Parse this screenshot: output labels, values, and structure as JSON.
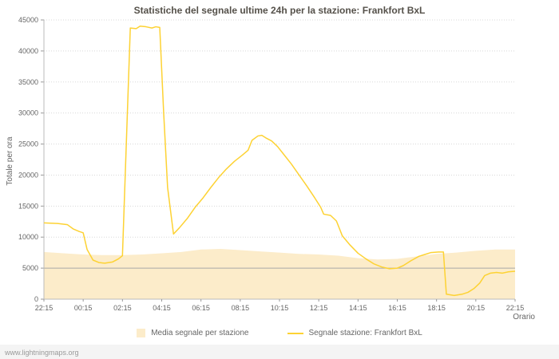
{
  "watermark": "www.lightningmaps.org",
  "chart_data": {
    "type": "line",
    "title": "Statistiche del segnale ultime 24h per la stazione: Frankfort BxL",
    "xlabel": "Orario",
    "ylabel": "Totale per ora",
    "ylim": [
      0,
      45000
    ],
    "ytick_step": 5000,
    "grid": "horizontal-dotted",
    "baseline_value": 5000,
    "legend_position": "bottom",
    "x_ticks": [
      "22:15",
      "00:15",
      "02:15",
      "04:15",
      "06:15",
      "08:15",
      "10:15",
      "12:15",
      "14:15",
      "16:15",
      "18:15",
      "20:15",
      "22:15"
    ],
    "x_unit_hours_total": 24,
    "colors": {
      "line": "#fdd233",
      "area": "#fcecca",
      "baseline": "#a8a8a8",
      "grid": "#d8d8d8"
    },
    "series": [
      {
        "name": "Media segnale per stazione",
        "type": "area",
        "color": "#fcecca",
        "x": [
          0,
          1,
          2,
          3,
          4,
          5,
          6,
          7,
          8,
          9,
          10,
          11,
          12,
          13,
          14,
          15,
          16,
          17,
          18,
          19,
          20,
          21,
          22,
          23,
          24
        ],
        "values": [
          7600,
          7400,
          7200,
          7100,
          7100,
          7200,
          7400,
          7600,
          8000,
          8100,
          7900,
          7700,
          7500,
          7300,
          7200,
          7000,
          6600,
          6400,
          6500,
          6900,
          7300,
          7500,
          7800,
          8000,
          8000
        ]
      },
      {
        "name": "Segnale stazione: Frankfort BxL",
        "type": "line",
        "color": "#fdd233",
        "x": [
          0,
          0.7,
          1.2,
          1.5,
          1.8,
          2.0,
          2.2,
          2.5,
          2.8,
          3.1,
          3.5,
          3.8,
          4.0,
          4.4,
          4.7,
          4.9,
          5.2,
          5.5,
          5.7,
          5.9,
          6.1,
          6.3,
          6.6,
          6.9,
          7.3,
          7.7,
          8.1,
          8.5,
          8.9,
          9.3,
          9.7,
          10.1,
          10.4,
          10.6,
          10.9,
          11.1,
          11.3,
          11.6,
          11.9,
          12.2,
          12.6,
          13.0,
          13.4,
          13.8,
          14.1,
          14.25,
          14.6,
          14.9,
          15.2,
          15.6,
          16.0,
          16.4,
          16.8,
          17.2,
          17.6,
          18.0,
          18.3,
          18.7,
          19.1,
          19.4,
          19.7,
          20.1,
          20.35,
          20.5,
          20.9,
          21.3,
          21.6,
          21.9,
          22.2,
          22.45,
          22.75,
          23.05,
          23.35,
          23.65,
          24.0
        ],
        "values": [
          12300,
          12200,
          12000,
          11300,
          10900,
          10700,
          8000,
          6300,
          5900,
          5800,
          6000,
          6500,
          7000,
          43700,
          43600,
          44000,
          43900,
          43700,
          43900,
          43800,
          30000,
          18000,
          10500,
          11500,
          13000,
          14800,
          16300,
          18000,
          19600,
          21000,
          22200,
          23200,
          24000,
          25600,
          26300,
          26400,
          26000,
          25500,
          24600,
          23400,
          21800,
          20000,
          18200,
          16300,
          14800,
          13700,
          13500,
          12600,
          10200,
          8700,
          7400,
          6500,
          5700,
          5200,
          4900,
          5000,
          5400,
          6200,
          6900,
          7200,
          7500,
          7600,
          7600,
          800,
          600,
          800,
          1100,
          1700,
          2600,
          3800,
          4200,
          4300,
          4200,
          4400,
          4500
        ]
      }
    ]
  }
}
